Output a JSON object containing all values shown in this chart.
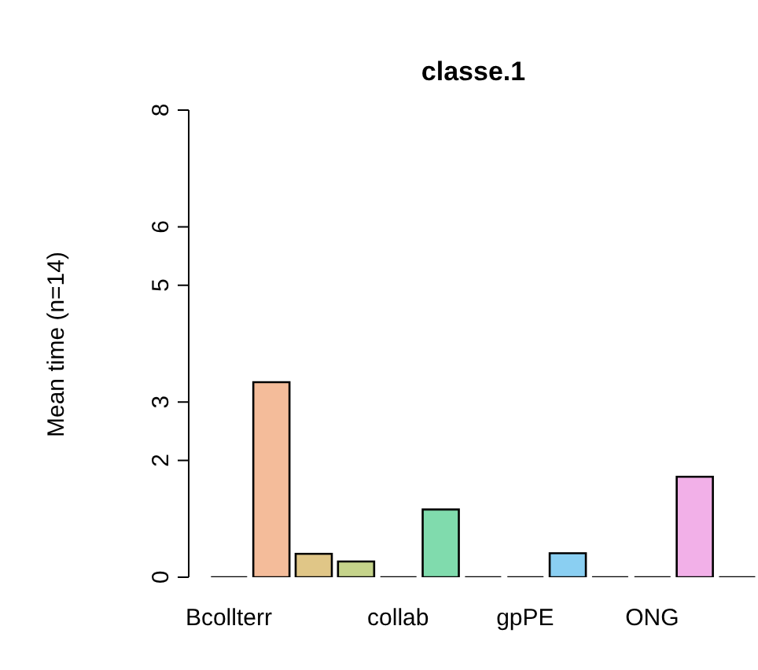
{
  "chart_data": {
    "type": "bar",
    "title": "classe.1",
    "ylabel": "Mean time (n=14)",
    "categories": [
      "Bcollterr",
      null,
      null,
      null,
      "collab",
      null,
      null,
      "gpPE",
      null,
      null,
      "ONG",
      null,
      null
    ],
    "values": [
      0,
      3.34,
      0.4,
      0.27,
      0,
      1.16,
      0,
      0,
      0.41,
      0,
      0,
      1.72,
      0
    ],
    "colors": [
      "#000000",
      "#f4bc9a",
      "#e0c687",
      "#c5d38a",
      "#000000",
      "#80dbad",
      "#000000",
      "#000000",
      "#8acff2",
      "#000000",
      "#000000",
      "#f2b0e8",
      "#000000"
    ],
    "ylim": [
      0,
      8
    ],
    "yticks": [
      0,
      2,
      3,
      5,
      6,
      8
    ],
    "grid": false,
    "legend": false
  }
}
